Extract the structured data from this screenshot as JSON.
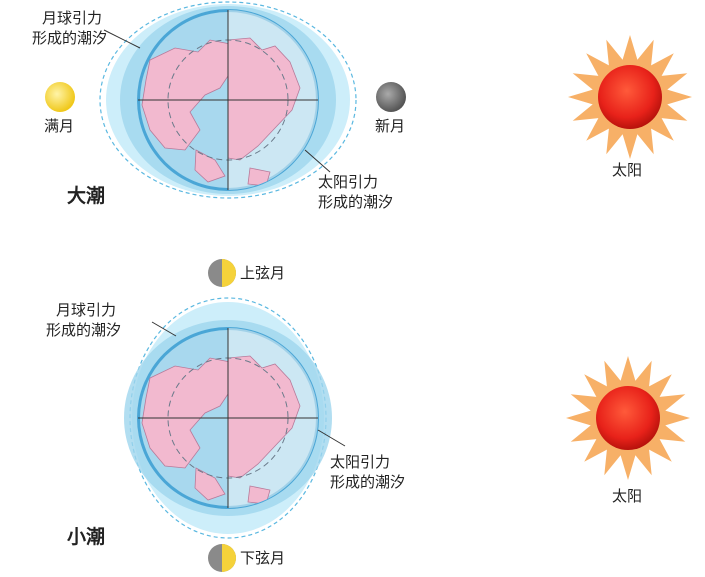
{
  "spring_tide": {
    "title": "大潮",
    "moon_tide_label_line1": "月球引力",
    "moon_tide_label_line2": "形成的潮汐",
    "sun_tide_label_line1": "太阳引力",
    "sun_tide_label_line2": "形成的潮汐",
    "full_moon_label": "满月",
    "new_moon_label": "新月",
    "sun_label": "太阳"
  },
  "neap_tide": {
    "title": "小潮",
    "first_quarter_label": "上弦月",
    "last_quarter_label": "下弦月",
    "moon_tide_label_line1": "月球引力",
    "moon_tide_label_line2": "形成的潮汐",
    "sun_tide_label_line1": "太阳引力",
    "sun_tide_label_line2": "形成的潮汐",
    "sun_label": "太阳"
  },
  "colors": {
    "ocean": "#a8d8ee",
    "tide_bulge": "#cdeefa",
    "land": "#f2b9cf",
    "earth_rim": "#4aa6d6",
    "sun_core": "#e8221a",
    "sun_rays": "#f7b067",
    "moon_light": "#f5d23a",
    "moon_dark": "#777777"
  }
}
